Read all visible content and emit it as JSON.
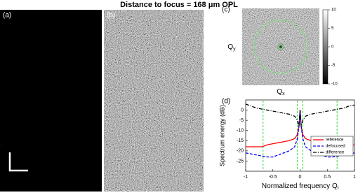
{
  "title": "Distance to focus = 168 μm OPL",
  "panel_labels": [
    "(a)",
    "(b)",
    "(c)",
    "(d)"
  ],
  "panel_c": {
    "ylabel": "Q",
    "ylabel_sub": "y",
    "xlabel": "Q",
    "xlabel_sub": "x",
    "colorbar": {
      "lim": [
        -10,
        10
      ],
      "ticks": [
        10,
        5,
        0,
        -5,
        -10
      ]
    }
  },
  "chart_data": {
    "type": "line",
    "xlabel": "Normalized frequency Q",
    "xlabel_sub": "r",
    "ylabel": "Spectrum energy (dB)",
    "xlim": [
      -1,
      1
    ],
    "xticks": [
      -1,
      -0.5,
      0,
      0.5,
      1
    ],
    "ylim": [
      -30,
      5
    ],
    "yticks": [
      -25,
      -20,
      -15,
      -10,
      -5,
      0
    ],
    "legend": "lower right",
    "x": [
      -1,
      -0.9,
      -0.8,
      -0.7,
      -0.6,
      -0.5,
      -0.4,
      -0.3,
      -0.2,
      -0.1,
      -0.05,
      -0.02,
      0,
      0.02,
      0.05,
      0.1,
      0.2,
      0.3,
      0.4,
      0.5,
      0.6,
      0.7,
      0.8,
      0.9,
      1
    ],
    "series": [
      {
        "name": "reference",
        "color": "#ff0000",
        "dash": "none",
        "values": [
          -18,
          -18,
          -18,
          -18,
          -17,
          -16.5,
          -16,
          -15.5,
          -15,
          -14,
          -12,
          -8,
          0,
          -8,
          -12,
          -14,
          -15,
          -15.5,
          -16,
          -16.5,
          -17,
          -18,
          -18,
          -17.5,
          -17
        ]
      },
      {
        "name": "defocused",
        "color": "#0000ff",
        "dash": "4 2",
        "values": [
          -21,
          -21.5,
          -22,
          -22.5,
          -23,
          -23,
          -22,
          -21,
          -20,
          -18,
          -14,
          -8,
          0,
          -8,
          -14,
          -18,
          -20,
          -21,
          -22,
          -23,
          -23,
          -22.5,
          -22,
          -21.5,
          -21
        ]
      },
      {
        "name": "difference",
        "color": "#000000",
        "dash": "5 2 1 2",
        "values": [
          3,
          2,
          1,
          0.5,
          0,
          -0.5,
          -1,
          -1.5,
          -2,
          -3,
          -5,
          -8,
          0,
          -8,
          -5,
          -3,
          -2,
          -1.5,
          -1,
          -0.5,
          0,
          0.5,
          1,
          2,
          2.5
        ]
      }
    ],
    "vlines": {
      "color": "#33dd33",
      "x": [
        -0.68,
        -0.05,
        0.05,
        0.68
      ]
    }
  }
}
